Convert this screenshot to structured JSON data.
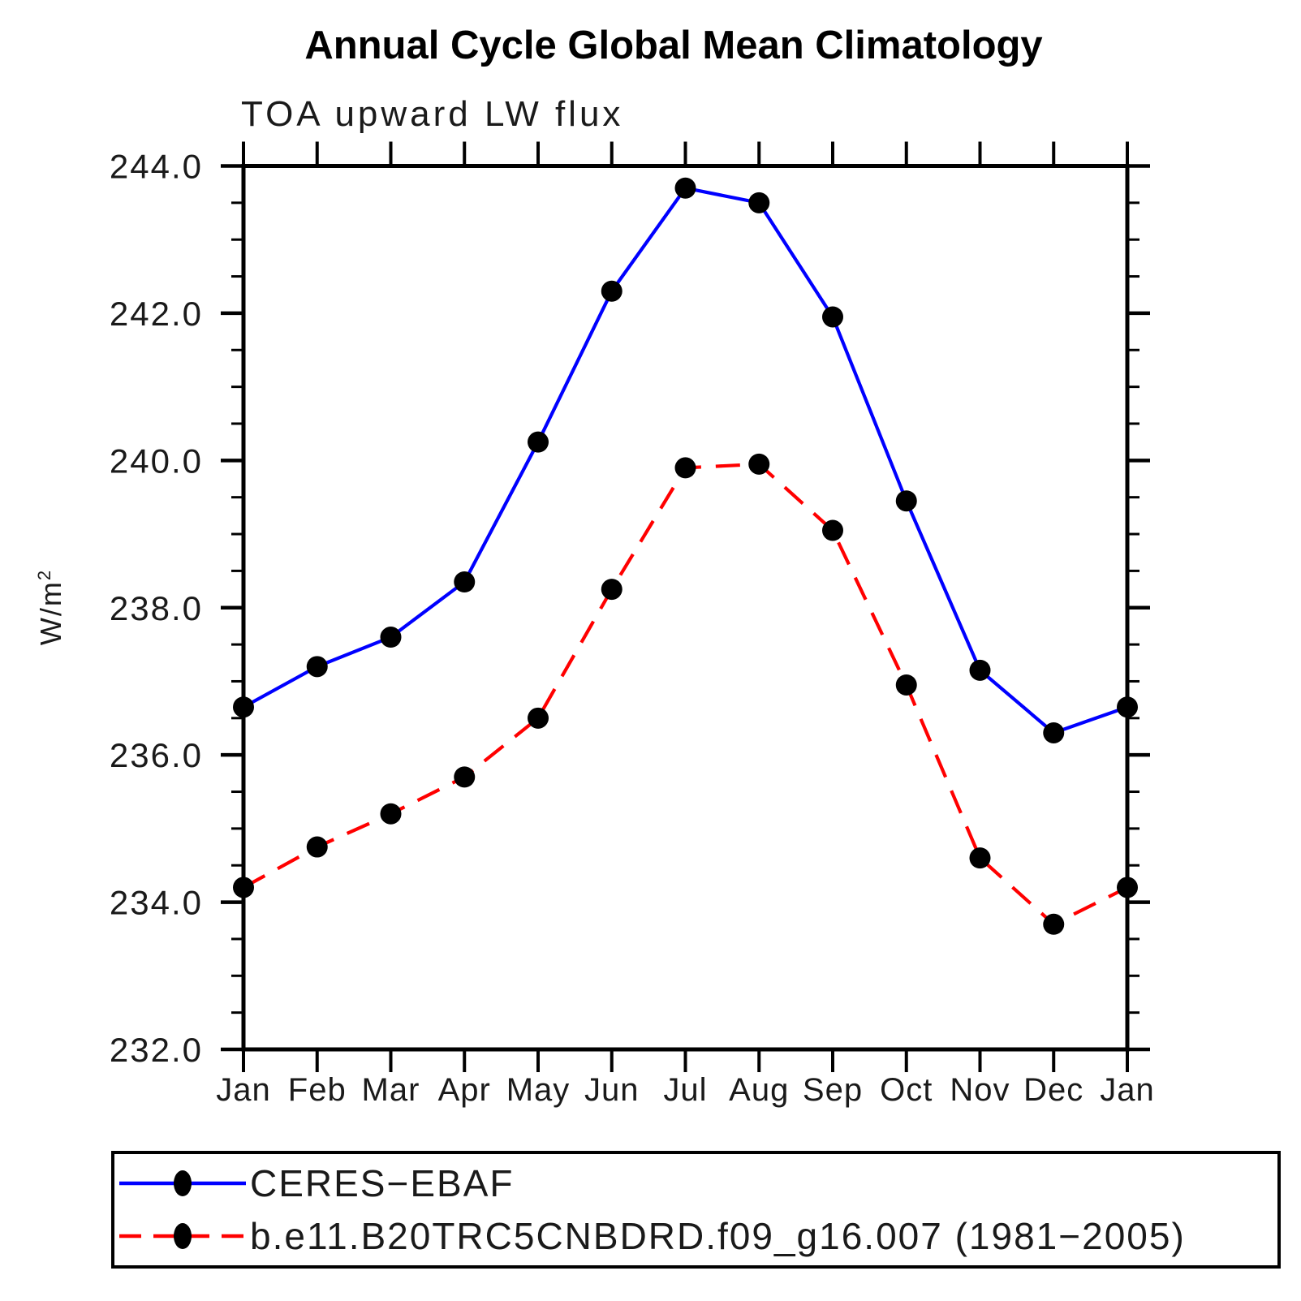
{
  "header": {
    "title": "Annual Cycle Global Mean Climatology",
    "subtitle": "TOA upward LW flux"
  },
  "axes": {
    "y_label_base": "W/m",
    "y_label_sup": "2",
    "y_tick_labels": [
      "232.0",
      "234.0",
      "236.0",
      "238.0",
      "240.0",
      "242.0",
      "244.0"
    ],
    "x_tick_labels": [
      "Jan",
      "Feb",
      "Mar",
      "Apr",
      "May",
      "Jun",
      "Jul",
      "Aug",
      "Sep",
      "Oct",
      "Nov",
      "Dec",
      "Jan"
    ]
  },
  "legend": {
    "items": [
      {
        "label": "CERES−EBAF",
        "line": "solid",
        "color": "#0000ff",
        "marker_color": "#000000"
      },
      {
        "label": "b.e11.B20TRC5CNBDRD.f09_g16.007 (1981−2005)",
        "line": "dashed",
        "color": "#ff0000",
        "marker_color": "#000000"
      }
    ]
  },
  "chart_data": {
    "type": "line",
    "title": "Annual Cycle Global Mean Climatology",
    "subtitle": "TOA upward LW flux",
    "xlabel": "",
    "ylabel": "W/m^2",
    "x": [
      "Jan",
      "Feb",
      "Mar",
      "Apr",
      "May",
      "Jun",
      "Jul",
      "Aug",
      "Sep",
      "Oct",
      "Nov",
      "Dec",
      "Jan"
    ],
    "ylim": [
      232.0,
      244.0
    ],
    "y_major_step": 2.0,
    "y_minor_step": 0.5,
    "grid": false,
    "legend_position": "bottom",
    "marker": "filled-circle",
    "marker_color": "#000000",
    "series": [
      {
        "name": "CERES-EBAF",
        "color": "#0000ff",
        "style": "solid",
        "values": [
          236.65,
          237.2,
          237.6,
          238.35,
          240.25,
          242.3,
          243.7,
          243.5,
          241.95,
          239.45,
          237.15,
          236.3,
          236.65
        ]
      },
      {
        "name": "b.e11.B20TRC5CNBDRD.f09_g16.007 (1981-2005)",
        "color": "#ff0000",
        "style": "dashed",
        "values": [
          234.2,
          234.75,
          235.2,
          235.7,
          236.5,
          238.25,
          239.9,
          239.95,
          239.05,
          236.95,
          234.6,
          233.7,
          234.2
        ]
      }
    ]
  }
}
